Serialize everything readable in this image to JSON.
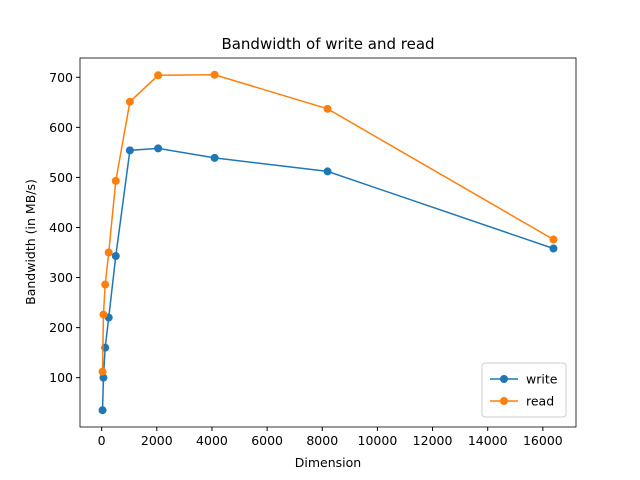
{
  "chart_data": {
    "type": "line",
    "title": "Bandwidth of write and read",
    "xlabel": "Dimension",
    "ylabel": "Bandwidth (in MB/s)",
    "x": [
      32,
      64,
      128,
      256,
      512,
      1024,
      2048,
      4096,
      8192,
      16384
    ],
    "series": [
      {
        "name": "write",
        "color": "#1f77b4",
        "values": [
          35,
          100,
          160,
          220,
          343,
          554,
          558,
          539,
          512,
          358
        ]
      },
      {
        "name": "read",
        "color": "#ff7f0e",
        "values": [
          112,
          226,
          286,
          350,
          493,
          651,
          704,
          705,
          637,
          376
        ]
      }
    ],
    "xlim": [
      -785.6,
      17201.6
    ],
    "xticks": [
      0,
      2000,
      4000,
      6000,
      8000,
      10000,
      12000,
      14000,
      16000
    ],
    "ylim": [
      1.5,
      738.5
    ],
    "yticks": [
      100,
      200,
      300,
      400,
      500,
      600,
      700
    ],
    "legend": "lower right",
    "grid": false
  }
}
